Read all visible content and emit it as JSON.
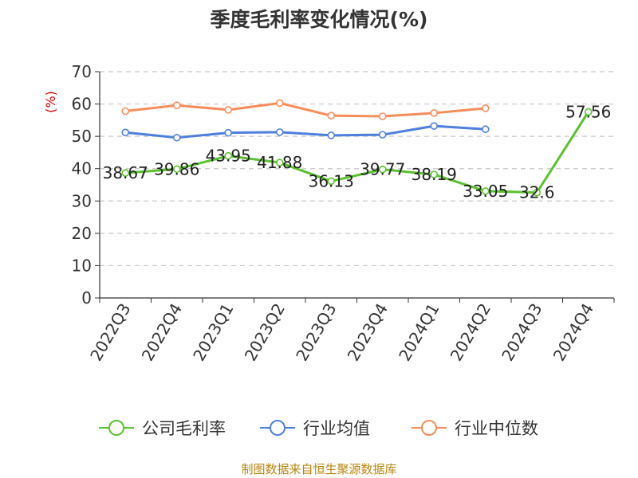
{
  "chart_data": {
    "type": "line",
    "title": "季度毛利率变化情况(%)",
    "ylabel": "(%)",
    "xlabel": "",
    "ylim": [
      0,
      70
    ],
    "yticks": [
      0,
      10,
      20,
      30,
      40,
      50,
      60,
      70
    ],
    "grid": true,
    "legend_position": "bottom",
    "categories": [
      "2022Q3",
      "2022Q4",
      "2023Q1",
      "2023Q2",
      "2023Q3",
      "2023Q4",
      "2024Q1",
      "2024Q2",
      "2024Q3",
      "2024Q4"
    ],
    "series": [
      {
        "name": "公司毛利率",
        "color": "#5cc12e",
        "values": [
          38.67,
          39.86,
          43.95,
          41.88,
          36.13,
          39.77,
          38.19,
          33.05,
          32.6,
          57.56
        ],
        "labels": [
          "38.67",
          "39.86",
          "43.95",
          "41.88",
          "36.13",
          "39.77",
          "38.19",
          "33.05",
          "32.6",
          "57.56"
        ]
      },
      {
        "name": "行业均值",
        "color": "#4e7fde",
        "values": [
          51.2,
          49.6,
          51.1,
          51.3,
          50.3,
          50.5,
          53.2,
          52.2,
          null,
          null
        ]
      },
      {
        "name": "行业中位数",
        "color": "#f68c5a",
        "values": [
          57.8,
          59.6,
          58.2,
          60.3,
          56.4,
          56.2,
          57.2,
          58.7,
          null,
          null
        ]
      }
    ],
    "source": "制图数据来自恒生聚源数据库"
  }
}
